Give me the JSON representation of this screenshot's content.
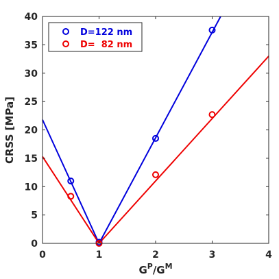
{
  "chart_data": {
    "type": "scatter",
    "xlabel": {
      "base1": "G",
      "sup1": "P",
      "slash": "/",
      "base2": "G",
      "sup2": "M"
    },
    "ylabel": "CRSS [MPa]",
    "xlim": [
      0,
      4
    ],
    "ylim": [
      0,
      40
    ],
    "xticks": [
      0,
      1,
      2,
      3,
      4
    ],
    "yticks": [
      0,
      5,
      10,
      15,
      20,
      25,
      30,
      35,
      40
    ],
    "grid": false,
    "legend_position": "top-left",
    "series": [
      {
        "name": "D=122 nm",
        "color": "#0000dd",
        "marker": "open-circle",
        "points": [
          {
            "x": 0.5,
            "y": 11.0
          },
          {
            "x": 1.0,
            "y": 0.2
          },
          {
            "x": 2.0,
            "y": 18.5
          },
          {
            "x": 3.0,
            "y": 37.6
          }
        ],
        "fit_lines": [
          {
            "from": [
              0,
              21.8
            ],
            "to": [
              1,
              0
            ]
          },
          {
            "from": [
              1,
              0
            ],
            "to": [
              3.15,
              40
            ]
          }
        ]
      },
      {
        "name": "D=  82 nm",
        "color": "#ee0000",
        "marker": "open-circle",
        "points": [
          {
            "x": 0.5,
            "y": 8.3
          },
          {
            "x": 1.0,
            "y": 0.0
          },
          {
            "x": 2.0,
            "y": 12.1
          },
          {
            "x": 3.0,
            "y": 22.7
          }
        ],
        "fit_lines": [
          {
            "from": [
              0,
              15.3
            ],
            "to": [
              1,
              0
            ]
          },
          {
            "from": [
              1,
              0
            ],
            "to": [
              4,
              33.0
            ]
          }
        ]
      }
    ]
  }
}
